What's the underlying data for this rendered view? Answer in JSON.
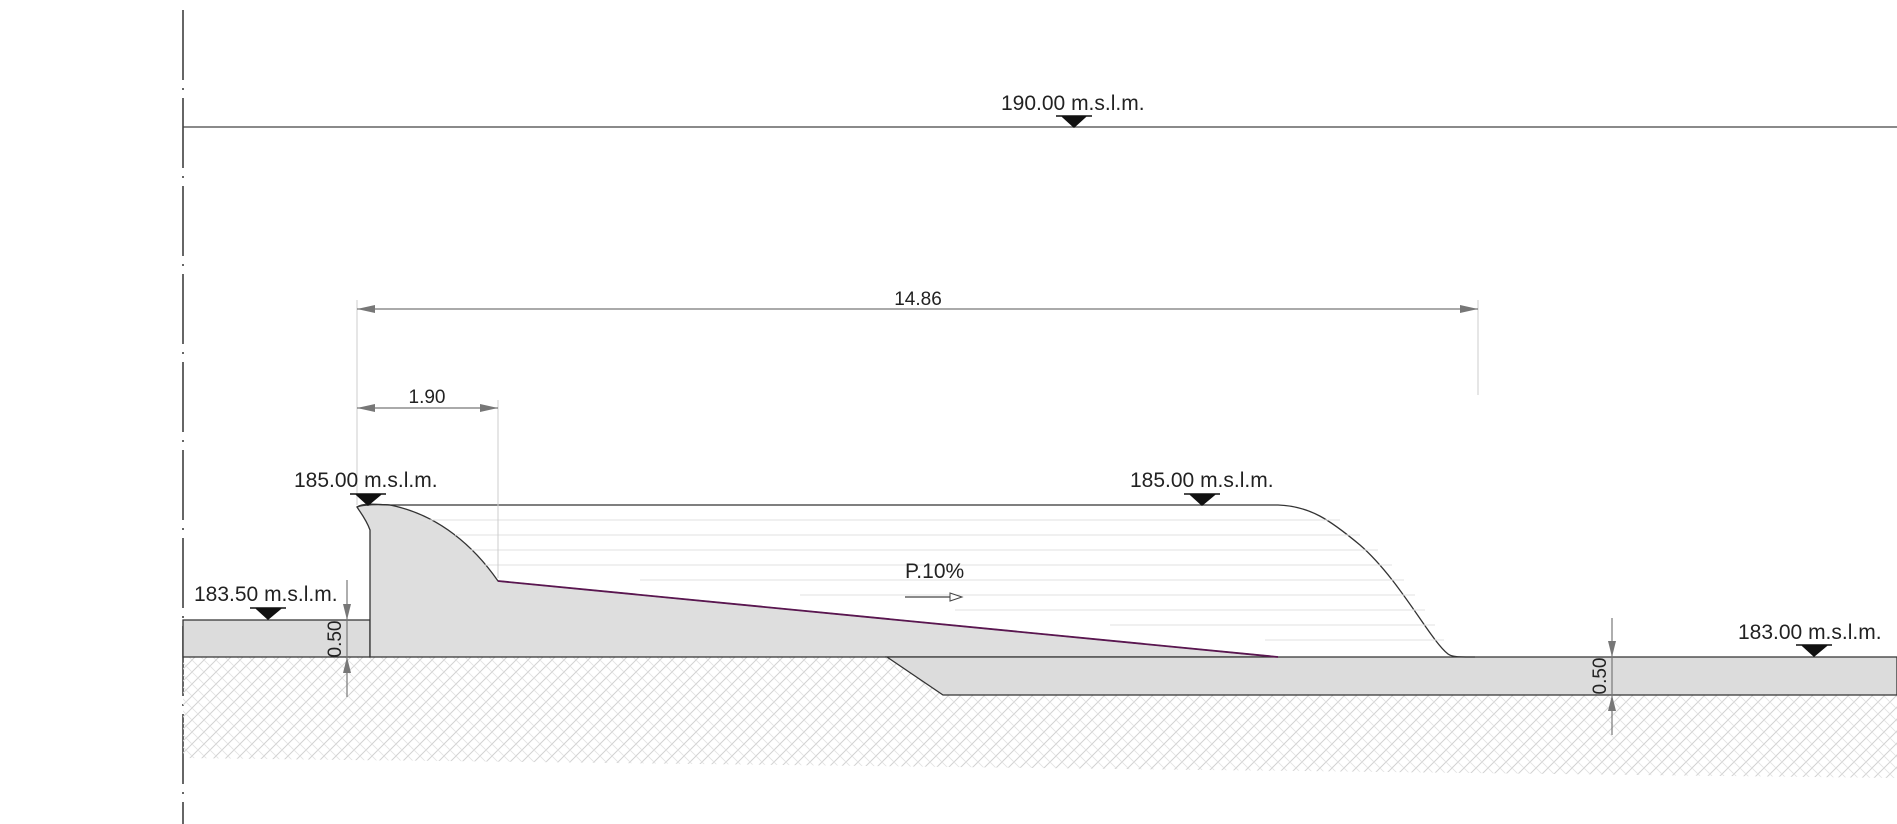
{
  "elevations": {
    "top": "190.00 m.s.l.m.",
    "crest_left": "185.00 m.s.l.m.",
    "crest_right": "185.00 m.s.l.m.",
    "upstream_bank": "183.50 m.s.l.m.",
    "downstream_bed": "183.00 m.s.l.m."
  },
  "dimensions": {
    "total_length": "14.86",
    "crest_width": "1.90",
    "thickness_left": "0.50",
    "thickness_right": "0.50"
  },
  "slope_label": "P.10%",
  "colors": {
    "line": "#333333",
    "fill": "#dedede",
    "dimension": "#777777",
    "slope_line": "#5a1650"
  }
}
